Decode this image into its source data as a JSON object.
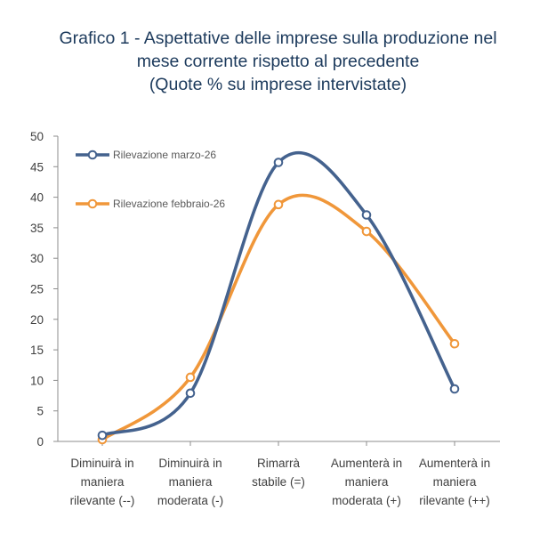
{
  "chart_data": {
    "type": "line",
    "title": [
      "Grafico 1 - Aspettative delle imprese sulla produzione nel",
      "mese corrente rispetto al precedente",
      "(Quote % su imprese intervistate)"
    ],
    "categories": [
      [
        "Diminuirà in",
        "maniera",
        "rilevante (--)"
      ],
      [
        "Diminuirà in",
        "maniera",
        "moderata (-)"
      ],
      [
        "Rimarrà",
        "stabile (=)"
      ],
      [
        "Aumenterà in",
        "maniera",
        "moderata (+)"
      ],
      [
        "Aumenterà in",
        "maniera",
        "rilevante (++)"
      ]
    ],
    "series": [
      {
        "name": "Rilevazione marzo-26",
        "values": [
          1.0,
          7.9,
          45.7,
          37.1,
          8.6
        ],
        "color": "#44628e"
      },
      {
        "name": "Rilevazione febbraio-26",
        "values": [
          0.3,
          10.5,
          38.8,
          34.4,
          16.0
        ],
        "color": "#f0973a"
      }
    ],
    "ylim": [
      0,
      50
    ],
    "yticks": [
      0,
      5,
      10,
      15,
      20,
      25,
      30,
      35,
      40,
      45,
      50
    ],
    "grid": false,
    "smooth": true,
    "legend_position": "top-left"
  }
}
